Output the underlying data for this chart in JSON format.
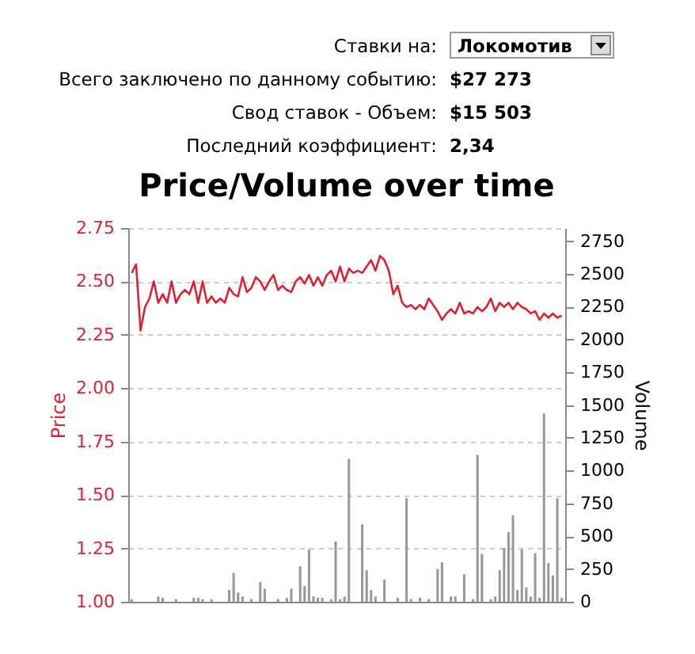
{
  "chart_data": {
    "type": "bar",
    "title": "Price/Volume over time",
    "annotations": [
      "Ставки на:",
      "Локомотив",
      "Всего заключено по данному событию:",
      "$27 273",
      "Свод ставок - Объем:",
      "$15 503",
      "Последний коэффициент:",
      "2,34"
    ],
    "ylabel": "Price",
    "y2label": "Volume",
    "categories": [
      null,
      null,
      null,
      null,
      null,
      null,
      null,
      null,
      null,
      null,
      null,
      null,
      null,
      null,
      null,
      null,
      null,
      null,
      null,
      null,
      null,
      null,
      null,
      null,
      null,
      null,
      null,
      null,
      null,
      null,
      null,
      null,
      null,
      null,
      null,
      null,
      null,
      null,
      null,
      null,
      null,
      null,
      null,
      null,
      null,
      null,
      null,
      null,
      null,
      null,
      null,
      null,
      null,
      null,
      null,
      null,
      null,
      null,
      null,
      null,
      null,
      null,
      null,
      null,
      null,
      null,
      null,
      null,
      null,
      null,
      null,
      null,
      null,
      null,
      null,
      null,
      null,
      null,
      null,
      null,
      null,
      null,
      null,
      null,
      null,
      null,
      null,
      null,
      null,
      null,
      null,
      null,
      null,
      null,
      null,
      null,
      null,
      null
    ],
    "series": [
      {
        "axis": "y2",
        "color": "#999999",
        "values": [
          20,
          0,
          0,
          0,
          0,
          0,
          40,
          30,
          0,
          0,
          20,
          0,
          0,
          0,
          30,
          30,
          20,
          0,
          20,
          0,
          0,
          0,
          90,
          220,
          70,
          40,
          0,
          20,
          0,
          150,
          100,
          0,
          0,
          20,
          0,
          30,
          100,
          0,
          270,
          120,
          400,
          40,
          30,
          30,
          0,
          20,
          460,
          20,
          40,
          1090,
          0,
          0,
          590,
          240,
          90,
          40,
          0,
          170,
          0,
          0,
          30,
          0,
          790,
          20,
          0,
          30,
          0,
          20,
          0,
          250,
          300,
          0,
          40,
          40,
          0,
          210,
          0,
          20,
          1120,
          365,
          0,
          20,
          40,
          240,
          410,
          530,
          660,
          90,
          400,
          110,
          40,
          370,
          30,
          1435,
          295,
          200,
          790,
          30
        ]
      },
      {
        "type": "line",
        "color": "#dd2233",
        "values": [
          2.54,
          2.58,
          2.27,
          2.38,
          2.42,
          2.5,
          2.4,
          2.44,
          2.4,
          2.5,
          2.4,
          2.44,
          2.46,
          2.44,
          2.5,
          2.4,
          2.5,
          2.4,
          2.43,
          2.4,
          2.42,
          2.4,
          2.47,
          2.44,
          2.43,
          2.52,
          2.45,
          2.47,
          2.52,
          2.5,
          2.46,
          2.5,
          2.53,
          2.46,
          2.48,
          2.46,
          2.45,
          2.5,
          2.52,
          2.49,
          2.53,
          2.48,
          2.52,
          2.48,
          2.53,
          2.55,
          2.5,
          2.57,
          2.5,
          2.56,
          2.54,
          2.55,
          2.54,
          2.57,
          2.6,
          2.55,
          2.62,
          2.6,
          2.55,
          2.44,
          2.48,
          2.4,
          2.38,
          2.39,
          2.37,
          2.39,
          2.37,
          2.42,
          2.39,
          2.36,
          2.32,
          2.35,
          2.37,
          2.35,
          2.4,
          2.35,
          2.36,
          2.35,
          2.38,
          2.36,
          2.38,
          2.42,
          2.36,
          2.4,
          2.38,
          2.4,
          2.37,
          2.4,
          2.38,
          2.37,
          2.35,
          2.36,
          2.32,
          2.35,
          2.33,
          2.35,
          2.33,
          2.34
        ]
      }
    ],
    "ylim": [
      1,
      2.75
    ],
    "yticks": [
      {
        "value": 1,
        "label": "1.00"
      },
      {
        "value": 1.25,
        "label": "1.25"
      },
      {
        "value": 1.5,
        "label": "1.50"
      },
      {
        "value": 1.75,
        "label": "1.75"
      },
      {
        "value": 2,
        "label": "2.00"
      },
      {
        "value": 2.25,
        "label": "2.25"
      },
      {
        "value": 2.5,
        "label": "2.50"
      },
      {
        "value": 2.75,
        "label": "2.75"
      }
    ],
    "y2lim": [
      0,
      2850
    ],
    "y2ticks": [
      0,
      250,
      500,
      750,
      1000,
      1250,
      1500,
      1750,
      2000,
      2250,
      2500,
      2750
    ],
    "grid": "y",
    "tick_labels": "y"
  }
}
